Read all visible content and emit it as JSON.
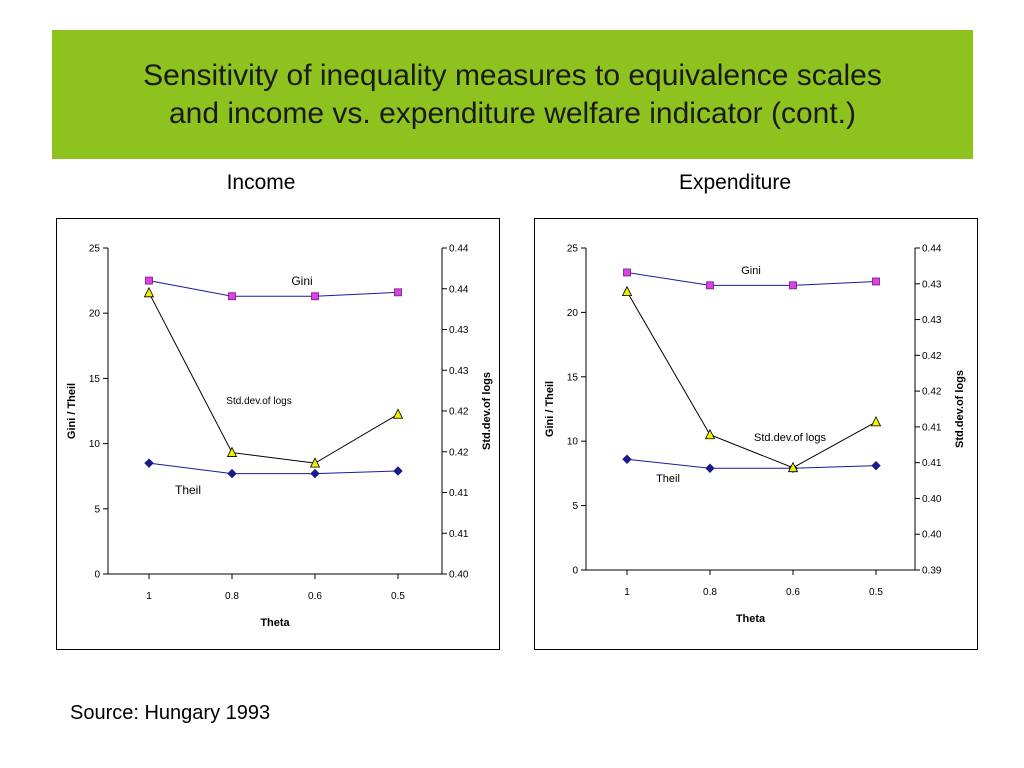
{
  "slide": {
    "title": "Sensitivity of inequality measures to equivalence scales\nand income vs. expenditure welfare indicator (cont.)",
    "source": "Source: Hungary 1993",
    "banner_color": "#8dc21f"
  },
  "colors": {
    "axis": "#000000",
    "gini_marker": "#e040e0",
    "theil_marker": "#1a1a8c",
    "sd_marker": "#f0f000",
    "series_line_blue": "#1a1aa0",
    "series_line_black": "#000000"
  },
  "chart_data": [
    {
      "type": "line",
      "panel_title": "Income",
      "xlabel": "Theta",
      "ylabel": "Gini / Theil",
      "y2label": "Std.dev.of logs",
      "categories": [
        "1",
        "0.8",
        "0.6",
        "0.5"
      ],
      "ylim": [
        0,
        25
      ],
      "yticks": [
        "0",
        "5",
        "10",
        "15",
        "20",
        "25"
      ],
      "y2lim": [
        0.4,
        0.44
      ],
      "y2ticks": [
        "0.40",
        "0.41",
        "0.41",
        "0.42",
        "0.42",
        "0.43",
        "0.43",
        "0.44",
        "0.44"
      ],
      "series": [
        {
          "name": "Gini",
          "axis": "left",
          "marker": "square",
          "values": [
            22.5,
            21.3,
            21.3,
            21.6
          ]
        },
        {
          "name": "Theil",
          "axis": "left",
          "marker": "diamond",
          "values": [
            8.5,
            7.7,
            7.7,
            7.9
          ]
        },
        {
          "name": "Std.dev.of logs",
          "axis": "right",
          "marker": "triangle",
          "values": [
            0.4345,
            0.4149,
            0.4136,
            0.4196
          ]
        }
      ]
    },
    {
      "type": "line",
      "panel_title": "Expenditure",
      "xlabel": "Theta",
      "ylabel": "Gini / Theil",
      "y2label": "Std.dev.of logs",
      "categories": [
        "1",
        "0.8",
        "0.6",
        "0.5"
      ],
      "ylim": [
        0,
        25
      ],
      "yticks": [
        "0",
        "5",
        "10",
        "15",
        "20",
        "25"
      ],
      "y2lim": [
        0.395,
        0.44
      ],
      "y2ticks": [
        "0.39",
        "0.40",
        "0.40",
        "0.41",
        "0.41",
        "0.42",
        "0.42",
        "0.43",
        "0.43",
        "0.44"
      ],
      "series": [
        {
          "name": "Gini",
          "axis": "left",
          "marker": "square",
          "values": [
            23.1,
            22.1,
            22.1,
            22.4
          ]
        },
        {
          "name": "Theil",
          "axis": "left",
          "marker": "diamond",
          "values": [
            8.6,
            7.9,
            7.9,
            8.1
          ]
        },
        {
          "name": "Std.dev.of logs",
          "axis": "right",
          "marker": "triangle",
          "values": [
            0.4339,
            0.4139,
            0.4093,
            0.4157
          ]
        }
      ]
    }
  ]
}
